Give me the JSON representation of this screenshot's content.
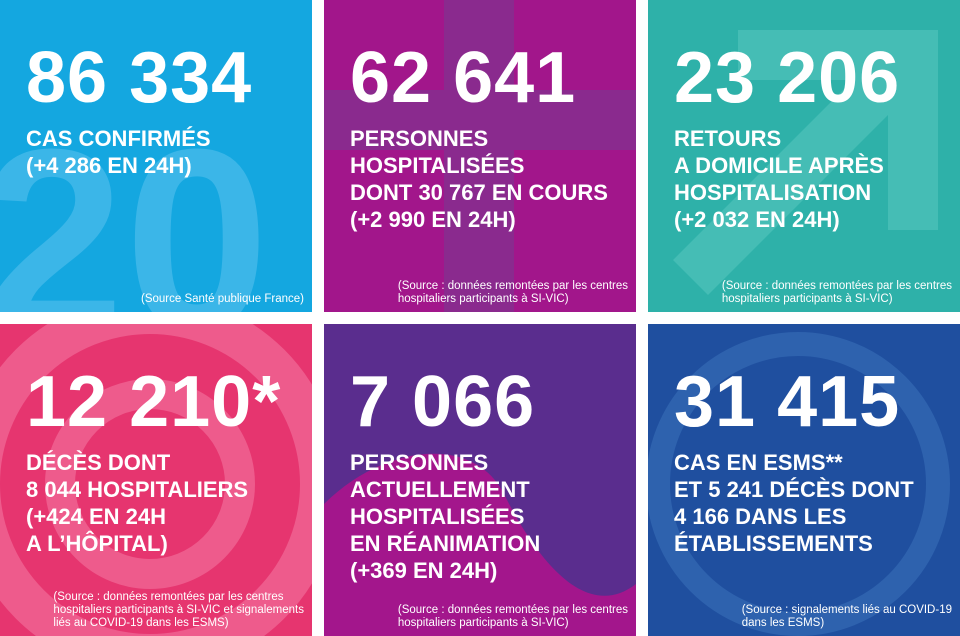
{
  "tiles": [
    {
      "number": "86 334",
      "lines": [
        "CAS CONFIRMÉS",
        "(+4 286 EN 24H)"
      ],
      "source": [
        "(Source Santé publique France)"
      ]
    },
    {
      "number": "62 641",
      "lines": [
        "PERSONNES",
        "HOSPITALISÉES",
        "DONT 30 767 EN COURS",
        "(+2 990 EN 24H)"
      ],
      "source": [
        "(Source : données remontées par les centres",
        "hospitaliers participants à SI-VIC)"
      ]
    },
    {
      "number": "23 206",
      "lines": [
        "RETOURS",
        "A DOMICILE APRÈS",
        "HOSPITALISATION",
        "(+2 032 EN 24H)"
      ],
      "source": [
        "(Source : données remontées par les centres",
        "hospitaliers participants à SI-VIC)"
      ]
    },
    {
      "number": "12 210*",
      "lines": [
        "DÉCÈS DONT",
        "8 044 HOSPITALIERS",
        "(+424 EN 24H",
        "A L’HÔPITAL)"
      ],
      "source": [
        "(Source : données remontées par les centres",
        "hospitaliers participants à SI-VIC et signalements",
        "liés au COVID-19 dans les ESMS)"
      ]
    },
    {
      "number": "7 066",
      "lines": [
        "PERSONNES",
        "ACTUELLEMENT",
        "HOSPITALISÉES",
        "EN RÉANIMATION",
        "(+369 EN 24H)"
      ],
      "source": [
        "(Source : données remontées par les centres",
        "hospitaliers participants à SI-VIC)"
      ]
    },
    {
      "number": "31 415",
      "lines": [
        "CAS EN ESMS**",
        "ET 5 241 DÉCÈS DONT",
        "4 166 DANS LES",
        "ÉTABLISSEMENTS"
      ],
      "source": [
        "(Source : signalements liés au COVID-19",
        "dans les ESMS)"
      ]
    }
  ]
}
